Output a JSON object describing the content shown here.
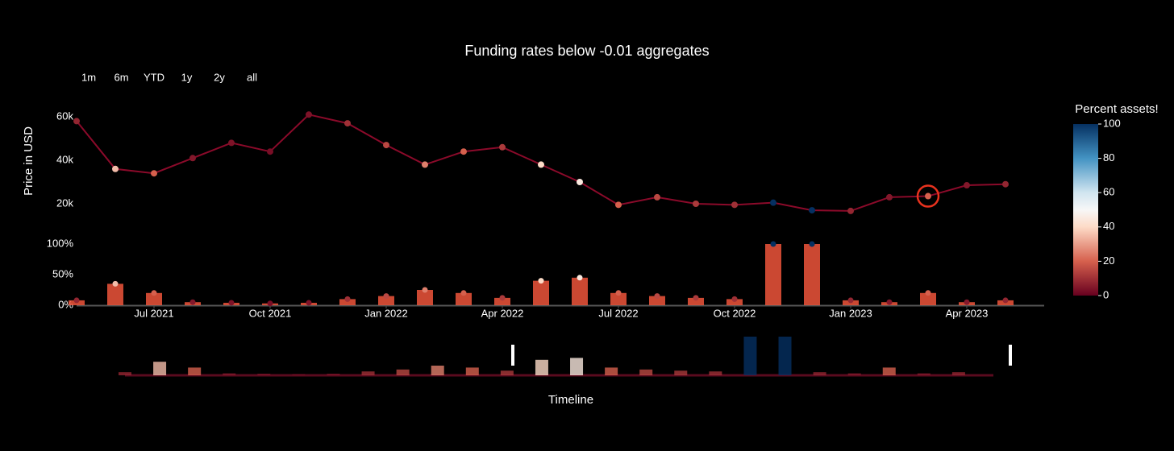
{
  "title": "Funding rates below -0.01 aggregates",
  "range_selector": [
    "1m",
    "6m",
    "YTD",
    "1y",
    "2y",
    "all"
  ],
  "x_axis_label": "Timeline",
  "annotation_circle_at": "2023-03",
  "colorbar": {
    "title": "Percent assets!",
    "range": [
      0,
      100
    ],
    "ticks": [
      0,
      20,
      40,
      60,
      80,
      100
    ],
    "colorscale": [
      [
        0,
        "#67001f"
      ],
      [
        20,
        "#d6604d"
      ],
      [
        40,
        "#fddbc7"
      ],
      [
        50,
        "#f7f7f7"
      ],
      [
        60,
        "#d1e5f0"
      ],
      [
        80,
        "#4393c3"
      ],
      [
        100,
        "#053061"
      ]
    ]
  },
  "chart_data": [
    {
      "type": "scatter",
      "y_axis_label": "Price in USD",
      "color_by": "chart_data.1.values",
      "x": [
        "2021-05",
        "2021-06",
        "2021-07",
        "2021-08",
        "2021-09",
        "2021-10",
        "2021-11",
        "2021-12",
        "2022-01",
        "2022-02",
        "2022-03",
        "2022-04",
        "2022-05",
        "2022-06",
        "2022-07",
        "2022-08",
        "2022-09",
        "2022-10",
        "2022-11",
        "2022-12",
        "2023-01",
        "2023-02",
        "2023-03",
        "2023-04",
        "2023-05"
      ],
      "values": [
        58000,
        36000,
        34000,
        41000,
        48000,
        44000,
        61000,
        57000,
        47000,
        38000,
        44000,
        46000,
        38000,
        30000,
        19500,
        23000,
        20000,
        19500,
        20500,
        17000,
        16700,
        23000,
        23500,
        28500,
        29000
      ],
      "xlim": [
        "2021-05",
        "2023-06"
      ],
      "ylim": [
        10000,
        70000
      ],
      "yticks": [
        {
          "value": 20000,
          "label": "20k"
        },
        {
          "value": 40000,
          "label": "40k"
        },
        {
          "value": 60000,
          "label": "60k"
        }
      ]
    },
    {
      "type": "bar",
      "bar_color": "#ef553b",
      "x": [
        "2021-05",
        "2021-06",
        "2021-07",
        "2021-08",
        "2021-09",
        "2021-10",
        "2021-11",
        "2021-12",
        "2022-01",
        "2022-02",
        "2022-03",
        "2022-04",
        "2022-05",
        "2022-06",
        "2022-07",
        "2022-08",
        "2022-09",
        "2022-10",
        "2022-11",
        "2022-12",
        "2023-01",
        "2023-02",
        "2023-03",
        "2023-04",
        "2023-05"
      ],
      "values": [
        8,
        35,
        20,
        5,
        4,
        3,
        4,
        10,
        15,
        25,
        20,
        12,
        40,
        45,
        20,
        15,
        12,
        10,
        100,
        100,
        8,
        5,
        20,
        5,
        8
      ],
      "xlim": [
        "2021-05",
        "2023-06"
      ],
      "ylim": [
        0,
        100
      ],
      "yticks": [
        {
          "value": 0,
          "label": "0%"
        },
        {
          "value": 50,
          "label": "50%"
        },
        {
          "value": 100,
          "label": "100%"
        }
      ],
      "xticks": [
        {
          "value": "2021-07",
          "label": "Jul 2021"
        },
        {
          "value": "2021-10",
          "label": "Oct 2021"
        },
        {
          "value": "2022-01",
          "label": "Jan 2022"
        },
        {
          "value": "2022-04",
          "label": "Apr 2022"
        },
        {
          "value": "2022-07",
          "label": "Jul 2022"
        },
        {
          "value": "2022-10",
          "label": "Oct 2022"
        },
        {
          "value": "2023-01",
          "label": "Jan 2023"
        },
        {
          "value": "2023-04",
          "label": "Apr 2023"
        }
      ]
    }
  ]
}
